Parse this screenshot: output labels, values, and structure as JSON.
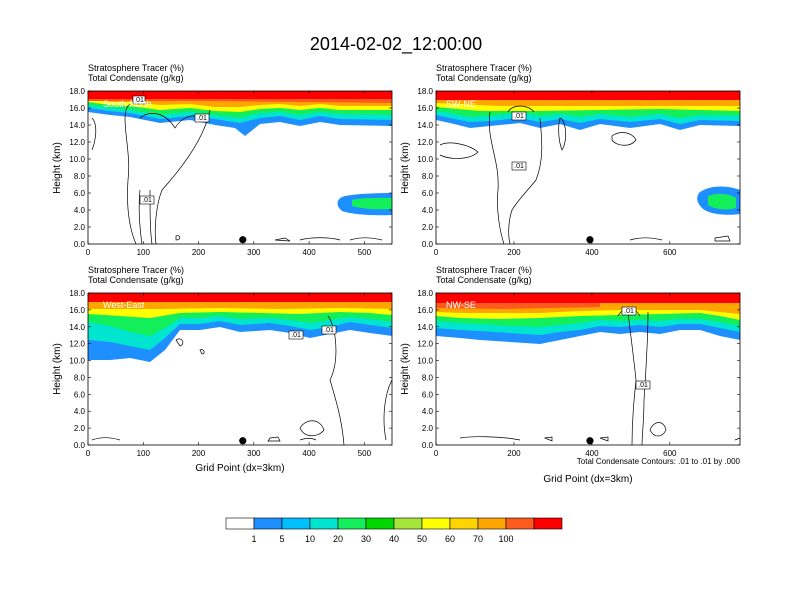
{
  "title": "2014-02-02_12:00:00",
  "footnote": "Total Condensate Contours: .01 to .01 by .000",
  "colorbar": {
    "colors": [
      "#ffffff",
      "#1e8fff",
      "#00bfff",
      "#00e5d0",
      "#13ef5a",
      "#00d800",
      "#a6e63a",
      "#ffff00",
      "#ffd400",
      "#ffa500",
      "#ff5a1e",
      "#ff0000"
    ],
    "labels": [
      "1",
      "5",
      "10",
      "20",
      "30",
      "40",
      "50",
      "60",
      "70",
      "100"
    ]
  },
  "chart_data": [
    {
      "type": "heatmap",
      "panel": "South-North",
      "subtitle_1": "Stratosphere Tracer   (%)",
      "subtitle_2": "Total Condensate   (g/kg)",
      "ylabel": "Height (km)",
      "xlabel": "",
      "xlim": [
        0,
        550
      ],
      "ylim": [
        0,
        18
      ],
      "xticks": [
        "0",
        "100",
        "200",
        "300",
        "400",
        "500"
      ],
      "xtick_values": [
        0,
        100,
        200,
        300,
        400,
        500
      ],
      "yticks": [
        "0.0",
        "2.0",
        "4.0",
        "6.0",
        "8.0",
        "10.0",
        "12.0",
        "14.0",
        "16.0",
        "18.0"
      ],
      "contour_labels": [
        ".01",
        ".01",
        ".01"
      ],
      "marker_x": 280
    },
    {
      "type": "heatmap",
      "panel": "SW-NE",
      "subtitle_1": "Stratosphere Tracer   (%)",
      "subtitle_2": "Total Condensate   (g/kg)",
      "ylabel": "Height (km)",
      "xlabel": "",
      "xlim": [
        0,
        780
      ],
      "ylim": [
        0,
        18
      ],
      "xticks": [
        "0",
        "200",
        "400",
        "600"
      ],
      "xtick_values": [
        0,
        200,
        400,
        600
      ],
      "yticks": [
        "0.0",
        "2.0",
        "4.0",
        "6.0",
        "8.0",
        "10.0",
        "12.0",
        "14.0",
        "16.0",
        "18.0"
      ],
      "contour_labels": [
        ".01",
        ".01"
      ],
      "marker_x": 395
    },
    {
      "type": "heatmap",
      "panel": "West-East",
      "subtitle_1": "Stratosphere Tracer   (%)",
      "subtitle_2": "Total Condensate   (g/kg)",
      "ylabel": "Height (km)",
      "xlabel": "Grid Point (dx=3km)",
      "xlim": [
        0,
        550
      ],
      "ylim": [
        0,
        18
      ],
      "xticks": [
        "0",
        "100",
        "200",
        "300",
        "400",
        "500"
      ],
      "xtick_values": [
        0,
        100,
        200,
        300,
        400,
        500
      ],
      "yticks": [
        "0.0",
        "2.0",
        "4.0",
        "6.0",
        "8.0",
        "10.0",
        "12.0",
        "14.0",
        "16.0",
        "18.0"
      ],
      "contour_labels": [
        ".01",
        ".01"
      ],
      "marker_x": 280
    },
    {
      "type": "heatmap",
      "panel": "NW-SE",
      "subtitle_1": "Stratosphere Tracer   (%)",
      "subtitle_2": "Total Condensate   (g/kg)",
      "ylabel": "Height (km)",
      "xlabel": "Grid Point (dx=3km)",
      "xlim": [
        0,
        780
      ],
      "ylim": [
        0,
        18
      ],
      "xticks": [
        "0",
        "200",
        "400",
        "600"
      ],
      "xtick_values": [
        0,
        200,
        400,
        600
      ],
      "yticks": [
        "0.0",
        "2.0",
        "4.0",
        "6.0",
        "8.0",
        "10.0",
        "12.0",
        "14.0",
        "16.0",
        "18.0"
      ],
      "contour_labels": [
        ".01",
        ".01"
      ],
      "marker_x": 395
    }
  ]
}
